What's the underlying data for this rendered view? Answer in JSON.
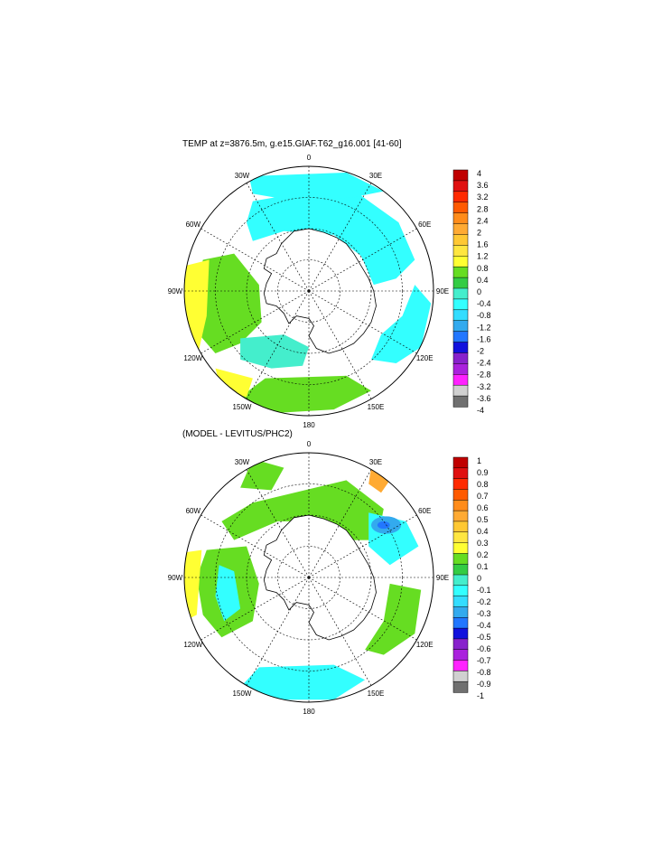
{
  "panels": [
    {
      "title": "TEMP at z=3876.5m, g.e15.GIAF.T62_g16.001 [41-60]",
      "lon_labels": [
        "0",
        "30E",
        "60E",
        "90E",
        "120E",
        "150E",
        "180",
        "150W",
        "120W",
        "90W",
        "60W",
        "30W"
      ],
      "colorbar": {
        "labels": [
          "4",
          "3.6",
          "3.2",
          "2.8",
          "2.4",
          "2",
          "1.6",
          "1.2",
          "0.8",
          "0.4",
          "0",
          "-0.4",
          "-0.8",
          "-1.2",
          "-1.6",
          "-2",
          "-2.4",
          "-2.8",
          "-3.2",
          "-3.6",
          "-4"
        ],
        "colors": [
          "#c00000",
          "#e01010",
          "#ff2a00",
          "#ff5a00",
          "#ff8c1a",
          "#ffaa33",
          "#ffc833",
          "#ffe640",
          "#ffff33",
          "#66dd22",
          "#33cc44",
          "#44eecc",
          "#33ffff",
          "#33ddff",
          "#33aaee",
          "#2277ff",
          "#1111dd",
          "#8822cc",
          "#aa22dd",
          "#ff22ff",
          "#d0d0d0",
          "#707070"
        ]
      }
    },
    {
      "title": "(MODEL - LEVITUS/PHC2)",
      "lon_labels": [
        "0",
        "30E",
        "60E",
        "90E",
        "120E",
        "150E",
        "180",
        "150W",
        "120W",
        "90W",
        "60W",
        "30W"
      ],
      "colorbar": {
        "labels": [
          "1",
          "0.9",
          "0.8",
          "0.7",
          "0.6",
          "0.5",
          "0.4",
          "0.3",
          "0.2",
          "0.1",
          "0",
          "-0.1",
          "-0.2",
          "-0.3",
          "-0.4",
          "-0.5",
          "-0.6",
          "-0.7",
          "-0.8",
          "-0.9",
          "-1"
        ],
        "colors": [
          "#c00000",
          "#e01010",
          "#ff2a00",
          "#ff5a00",
          "#ff8c1a",
          "#ffaa33",
          "#ffc833",
          "#ffe640",
          "#ffff33",
          "#66dd22",
          "#33cc44",
          "#44eecc",
          "#33ffff",
          "#33ddff",
          "#33aaee",
          "#2277ff",
          "#1111dd",
          "#8822cc",
          "#aa22dd",
          "#ff22ff",
          "#d0d0d0",
          "#707070"
        ]
      }
    }
  ],
  "fill_colors": {
    "green": "#66dd22",
    "light_green": "#33cc44",
    "cyan": "#44eecc",
    "sky": "#33ffff",
    "yellow": "#ffff33",
    "orange": "#ffaa33",
    "blue": "#33aaee",
    "deep_blue": "#2277ff"
  }
}
